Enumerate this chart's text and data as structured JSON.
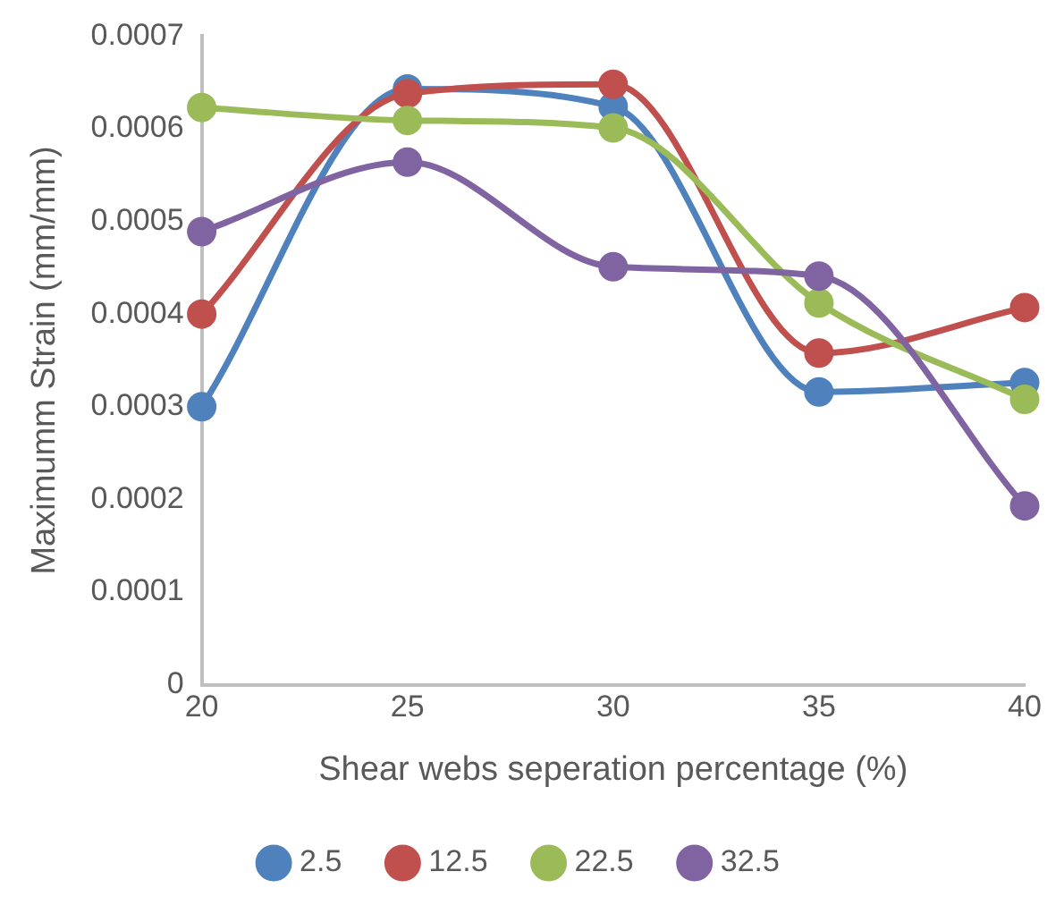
{
  "chart_data": {
    "type": "line",
    "xlabel": "Shear webs seperation percentage (%)",
    "ylabel": "Maximumm Strain (mm/mm)",
    "x": [
      20,
      25,
      30,
      35,
      40
    ],
    "xlim": [
      20,
      40
    ],
    "xticks": [
      20,
      25,
      30,
      35,
      40
    ],
    "ylim": [
      0,
      0.0007
    ],
    "yticks": [
      0,
      0.0001,
      0.0002,
      0.0003,
      0.0004,
      0.0005,
      0.0006,
      0.0007
    ],
    "grid": false,
    "legend": "bottom",
    "marker": "circle",
    "line_style": "solid",
    "series": [
      {
        "name": "2.5",
        "color": "#4f81bd",
        "values": [
          0.0003,
          0.000643,
          0.000624,
          0.000316,
          0.000326
        ]
      },
      {
        "name": "12.5",
        "color": "#c0504d",
        "values": [
          0.0004,
          0.000638,
          0.000648,
          0.000358,
          0.000407
        ]
      },
      {
        "name": "22.5",
        "color": "#9bbb59",
        "values": [
          0.000623,
          0.000609,
          0.000601,
          0.000412,
          0.000308
        ]
      },
      {
        "name": "32.5",
        "color": "#8064a2",
        "values": [
          0.000489,
          0.000564,
          0.000451,
          0.000441,
          0.000193
        ]
      }
    ]
  }
}
